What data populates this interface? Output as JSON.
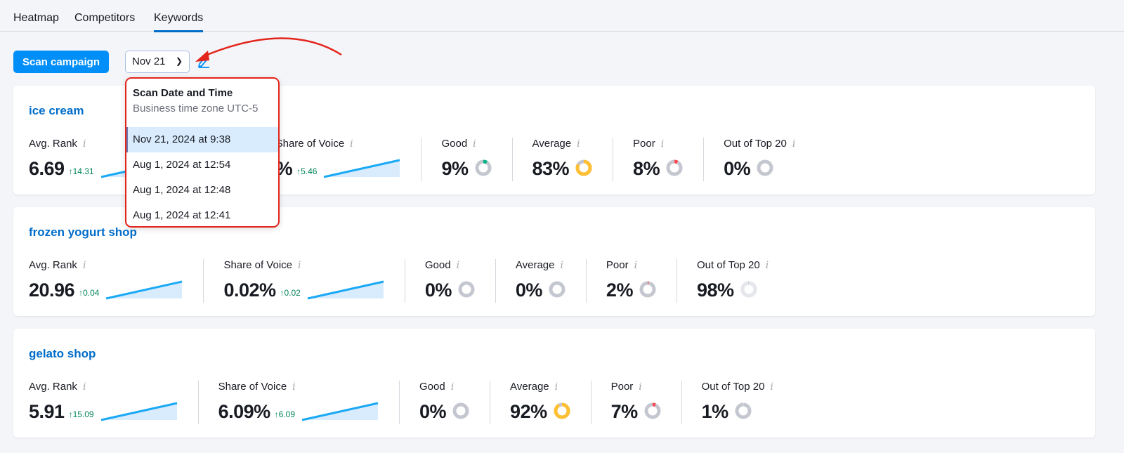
{
  "tabs": [
    {
      "label": "Heatmap"
    },
    {
      "label": "Competitors"
    },
    {
      "label": "Keywords",
      "active": true
    }
  ],
  "toolbar": {
    "scan_label": "Scan campaign",
    "date_value": "Nov 21",
    "edit_icon": "pencil-icon"
  },
  "dropdown": {
    "title": "Scan Date and Time",
    "subtitle": "Business time zone UTC-5",
    "options": [
      "Nov 21, 2024 at 9:38",
      "Aug 1, 2024 at 12:54",
      "Aug 1, 2024 at 12:48",
      "Aug 1, 2024 at 12:41"
    ],
    "selected": 0
  },
  "colors": {
    "accent": "#008ff8",
    "link": "#006dca",
    "good": "#00b386",
    "average": "#ffbf33",
    "poor": "#ff4953",
    "neutral": "#c4c7cf",
    "out": "#e6e7ec",
    "highlight": "#e3241b"
  },
  "cards": [
    {
      "title": "ice cream",
      "avg_rank": {
        "label": "Avg. Rank",
        "value": "6.69",
        "delta": "↑14.31"
      },
      "sov": {
        "label": "Share of Voice",
        "value": "%",
        "delta": "↑5.46"
      },
      "good": {
        "label": "Good",
        "value": "9%",
        "pct": 9
      },
      "average": {
        "label": "Average",
        "value": "83%",
        "pct": 83
      },
      "poor": {
        "label": "Poor",
        "value": "8%",
        "pct": 8
      },
      "out": {
        "label": "Out of Top 20",
        "value": "0%",
        "pct": 0
      }
    },
    {
      "title": "frozen yogurt shop",
      "avg_rank": {
        "label": "Avg. Rank",
        "value": "20.96",
        "delta": "↑0.04"
      },
      "sov": {
        "label": "Share of Voice",
        "value": "0.02%",
        "delta": "↑0.02"
      },
      "good": {
        "label": "Good",
        "value": "0%",
        "pct": 0
      },
      "average": {
        "label": "Average",
        "value": "0%",
        "pct": 0
      },
      "poor": {
        "label": "Poor",
        "value": "2%",
        "pct": 2
      },
      "out": {
        "label": "Out of Top 20",
        "value": "98%",
        "pct": 98
      }
    },
    {
      "title": "gelato shop",
      "avg_rank": {
        "label": "Avg. Rank",
        "value": "5.91",
        "delta": "↑15.09"
      },
      "sov": {
        "label": "Share of Voice",
        "value": "6.09%",
        "delta": "↑6.09"
      },
      "good": {
        "label": "Good",
        "value": "0%",
        "pct": 0
      },
      "average": {
        "label": "Average",
        "value": "92%",
        "pct": 92
      },
      "poor": {
        "label": "Poor",
        "value": "7%",
        "pct": 7
      },
      "out": {
        "label": "Out of Top 20",
        "value": "1%",
        "pct": 1
      }
    }
  ]
}
